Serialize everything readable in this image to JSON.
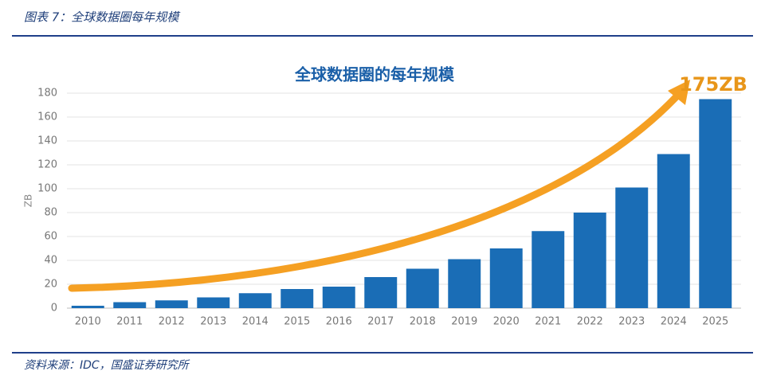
{
  "header": {
    "title": "图表 7：全球数据圈每年规模"
  },
  "chart_data": {
    "type": "bar",
    "title": "全球数据圈的每年规模",
    "annotation": "175ZB",
    "y_label": "ZB",
    "categories": [
      "2010",
      "2011",
      "2012",
      "2013",
      "2014",
      "2015",
      "2016",
      "2017",
      "2018",
      "2019",
      "2020",
      "2021",
      "2022",
      "2023",
      "2024",
      "2025"
    ],
    "values": [
      2,
      5,
      6.5,
      9,
      12.5,
      16,
      18,
      26,
      33,
      41,
      50,
      64.5,
      80,
      101,
      129,
      175
    ],
    "color": "#1a6db6",
    "ylim": [
      0,
      180
    ],
    "yticks": [
      0,
      20,
      40,
      60,
      80,
      100,
      120,
      140,
      160,
      180
    ],
    "grid": true
  },
  "footer": {
    "source": "资料来源：IDC，国盛证券研究所"
  }
}
